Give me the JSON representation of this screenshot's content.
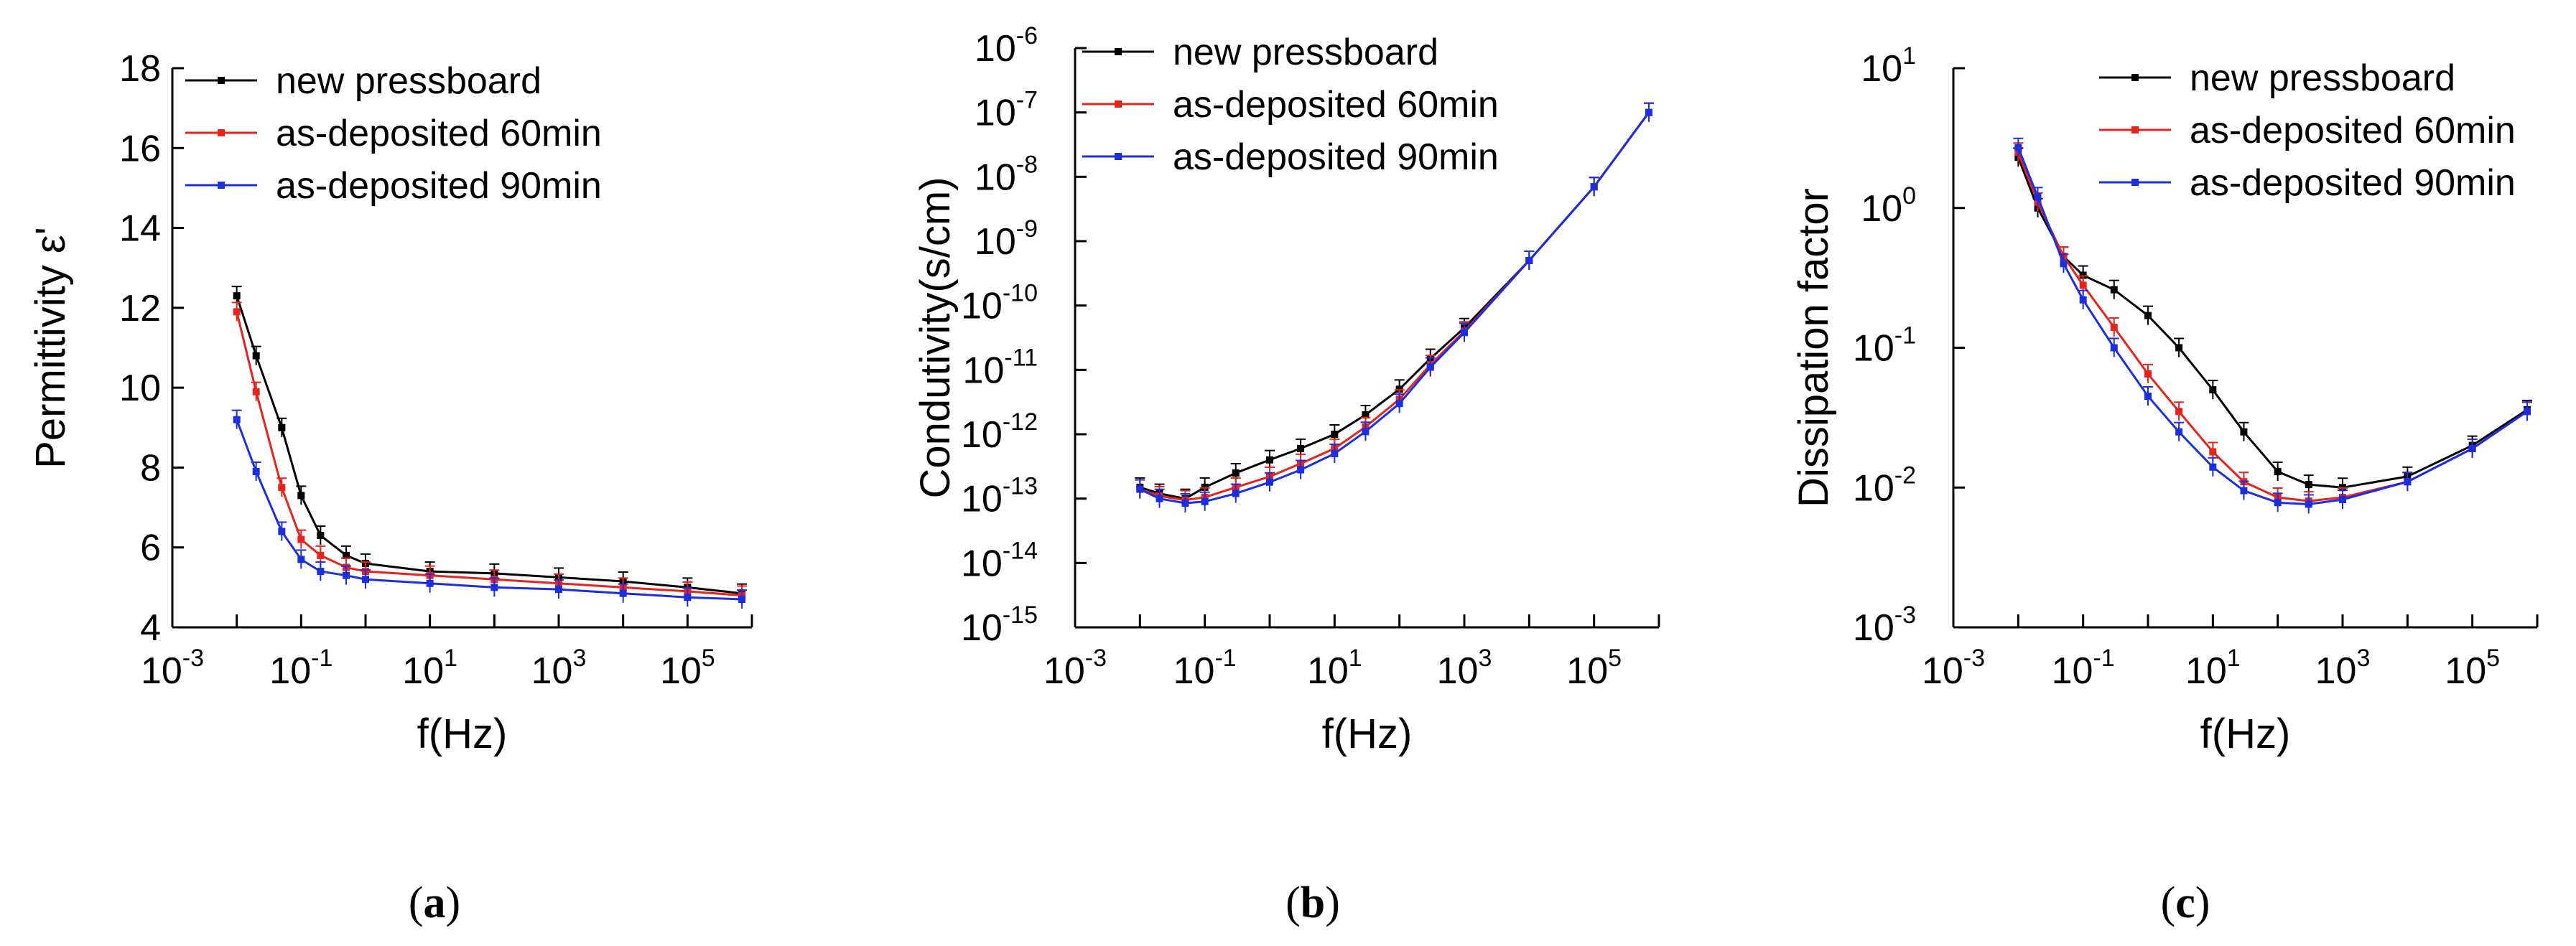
{
  "figure": {
    "captions": [
      "(a)",
      "(b)",
      "(c)"
    ]
  },
  "colors": {
    "black": "#000000",
    "red": "#e8231c",
    "orange": "#f39c3a",
    "blue": "#1b2fe0"
  },
  "chart_data": [
    {
      "type": "line",
      "id": "a",
      "title": "",
      "xlabel": "f(Hz)",
      "ylabel": "Permittivity ε'",
      "xscale": "log",
      "xlim": [
        0.001,
        1000000
      ],
      "yscale": "linear",
      "ylim": [
        4,
        18
      ],
      "yticks": [
        4,
        6,
        8,
        10,
        12,
        14,
        16,
        18
      ],
      "xticks": [
        {
          "base": "10",
          "exp": "-3",
          "value": 0.001
        },
        {
          "base": "10",
          "exp": "-1",
          "value": 0.1
        },
        {
          "base": "10",
          "exp": "1",
          "value": 10
        },
        {
          "base": "10",
          "exp": "3",
          "value": 1000
        },
        {
          "base": "10",
          "exp": "5",
          "value": 100000
        }
      ],
      "legend_position": "top-left",
      "series": [
        {
          "name": "new pressboard",
          "color": "#000000",
          "x": [
            0.01,
            0.02,
            0.05,
            0.1,
            0.2,
            0.5,
            1,
            10,
            100,
            1000,
            10000,
            100000,
            700000
          ],
          "y": [
            12.3,
            10.8,
            9.0,
            7.3,
            6.3,
            5.8,
            5.6,
            5.4,
            5.35,
            5.25,
            5.15,
            5.0,
            4.85
          ]
        },
        {
          "name": "as-deposited 60min",
          "color": "#e8231c",
          "x": [
            0.01,
            0.02,
            0.05,
            0.1,
            0.2,
            0.5,
            1,
            10,
            100,
            1000,
            10000,
            100000,
            700000
          ],
          "y": [
            11.9,
            9.9,
            7.5,
            6.2,
            5.8,
            5.5,
            5.4,
            5.3,
            5.2,
            5.1,
            5.0,
            4.9,
            4.8
          ]
        },
        {
          "name": "as-deposited 90min",
          "color": "#1b2fe0",
          "x": [
            0.01,
            0.02,
            0.05,
            0.1,
            0.2,
            0.5,
            1,
            10,
            100,
            1000,
            10000,
            100000,
            700000
          ],
          "y": [
            9.2,
            7.9,
            6.4,
            5.7,
            5.4,
            5.3,
            5.2,
            5.1,
            5.0,
            4.95,
            4.85,
            4.75,
            4.7
          ]
        }
      ]
    },
    {
      "type": "line",
      "id": "b",
      "title": "",
      "xlabel": "f(Hz)",
      "ylabel": "Condutivity(s/cm)",
      "xscale": "log",
      "xlim": [
        0.001,
        1000000
      ],
      "yscale": "log",
      "ylim": [
        1e-15,
        1e-06
      ],
      "yticks": [
        {
          "base": "10",
          "exp": "-6",
          "value": 1e-06
        },
        {
          "base": "10",
          "exp": "-7",
          "value": 1e-07
        },
        {
          "base": "10",
          "exp": "-8",
          "value": 1e-08
        },
        {
          "base": "10",
          "exp": "-9",
          "value": 1e-09
        },
        {
          "base": "10",
          "exp": "-10",
          "value": 1e-10
        },
        {
          "base": "10",
          "exp": "-11",
          "value": 1e-11
        },
        {
          "base": "10",
          "exp": "-12",
          "value": 1e-12
        },
        {
          "base": "10",
          "exp": "-13",
          "value": 1e-13
        },
        {
          "base": "10",
          "exp": "-14",
          "value": 1e-14
        },
        {
          "base": "10",
          "exp": "-15",
          "value": 1e-15
        }
      ],
      "xticks": [
        {
          "base": "10",
          "exp": "-3",
          "value": 0.001
        },
        {
          "base": "10",
          "exp": "-1",
          "value": 0.1
        },
        {
          "base": "10",
          "exp": "1",
          "value": 10
        },
        {
          "base": "10",
          "exp": "3",
          "value": 1000
        },
        {
          "base": "10",
          "exp": "5",
          "value": 100000
        }
      ],
      "legend_position": "top-left",
      "series": [
        {
          "name": "new pressboard",
          "color": "#000000",
          "x": [
            0.01,
            0.02,
            0.05,
            0.1,
            0.3,
            1,
            3,
            10,
            30,
            100,
            300,
            1000,
            10000,
            100000,
            700000
          ],
          "y": [
            1.5e-13,
            1.2e-13,
            1e-13,
            1.5e-13,
            2.5e-13,
            4e-13,
            6e-13,
            1e-12,
            2e-12,
            5e-12,
            1.5e-11,
            4.5e-11,
            5e-10,
            7e-09,
            1e-07
          ]
        },
        {
          "name": "as-deposited 60min",
          "color": "#e8231c",
          "x": [
            0.01,
            0.02,
            0.05,
            0.1,
            0.3,
            1,
            3,
            10,
            30,
            100,
            300,
            1000,
            10000,
            100000,
            700000
          ],
          "y": [
            1.4e-13,
            1.1e-13,
            9.5e-14,
            1.05e-13,
            1.5e-13,
            2.2e-13,
            3.5e-13,
            6e-13,
            1.3e-12,
            3.5e-12,
            1.2e-11,
            4e-11,
            5e-10,
            7e-09,
            1e-07
          ]
        },
        {
          "name": "as-deposited 90min",
          "color": "#1b2fe0",
          "x": [
            0.01,
            0.02,
            0.05,
            0.1,
            0.3,
            1,
            3,
            10,
            30,
            100,
            300,
            1000,
            10000,
            100000,
            700000
          ],
          "y": [
            1.4e-13,
            1e-13,
            8.5e-14,
            9e-14,
            1.2e-13,
            1.8e-13,
            2.8e-13,
            5e-13,
            1.1e-12,
            3e-12,
            1.1e-11,
            3.8e-11,
            5e-10,
            7e-09,
            1e-07
          ]
        }
      ]
    },
    {
      "type": "line",
      "id": "c",
      "title": "",
      "xlabel": "f(Hz)",
      "ylabel": "Dissipation factor",
      "xscale": "log",
      "xlim": [
        0.001,
        1000000
      ],
      "yscale": "log",
      "ylim": [
        0.001,
        10
      ],
      "yticks": [
        {
          "base": "10",
          "exp": "1",
          "value": 10
        },
        {
          "base": "10",
          "exp": "0",
          "value": 1
        },
        {
          "base": "10",
          "exp": "-1",
          "value": 0.1
        },
        {
          "base": "10",
          "exp": "-2",
          "value": 0.01
        },
        {
          "base": "10",
          "exp": "-3",
          "value": 0.001
        }
      ],
      "xticks": [
        {
          "base": "10",
          "exp": "-3",
          "value": 0.001
        },
        {
          "base": "10",
          "exp": "-1",
          "value": 0.1
        },
        {
          "base": "10",
          "exp": "1",
          "value": 10
        },
        {
          "base": "10",
          "exp": "3",
          "value": 1000
        },
        {
          "base": "10",
          "exp": "5",
          "value": 100000
        }
      ],
      "legend_position": "top-right",
      "series": [
        {
          "name": "new pressboard",
          "color": "#000000",
          "x": [
            0.01,
            0.02,
            0.05,
            0.1,
            0.3,
            1,
            3,
            10,
            30,
            100,
            300,
            1000,
            10000,
            100000,
            700000
          ],
          "y": [
            2.3,
            1.0,
            0.45,
            0.33,
            0.26,
            0.17,
            0.1,
            0.05,
            0.025,
            0.013,
            0.0105,
            0.01,
            0.012,
            0.02,
            0.036
          ]
        },
        {
          "name": "as-deposited 60min",
          "color": "#e8231c",
          "x": [
            0.01,
            0.02,
            0.05,
            0.1,
            0.3,
            1,
            3,
            10,
            30,
            100,
            300,
            1000,
            10000,
            100000,
            700000
          ],
          "y": [
            2.5,
            1.1,
            0.45,
            0.28,
            0.14,
            0.065,
            0.035,
            0.018,
            0.011,
            0.0085,
            0.008,
            0.0085,
            0.011,
            0.019,
            0.035
          ]
        },
        {
          "name": "as-deposited 90min",
          "color": "#1b2fe0",
          "x": [
            0.01,
            0.02,
            0.05,
            0.1,
            0.3,
            1,
            3,
            10,
            30,
            100,
            300,
            1000,
            10000,
            100000,
            700000
          ],
          "y": [
            2.7,
            1.2,
            0.4,
            0.22,
            0.1,
            0.045,
            0.025,
            0.014,
            0.0095,
            0.0078,
            0.0076,
            0.0082,
            0.011,
            0.019,
            0.035
          ]
        }
      ]
    }
  ]
}
